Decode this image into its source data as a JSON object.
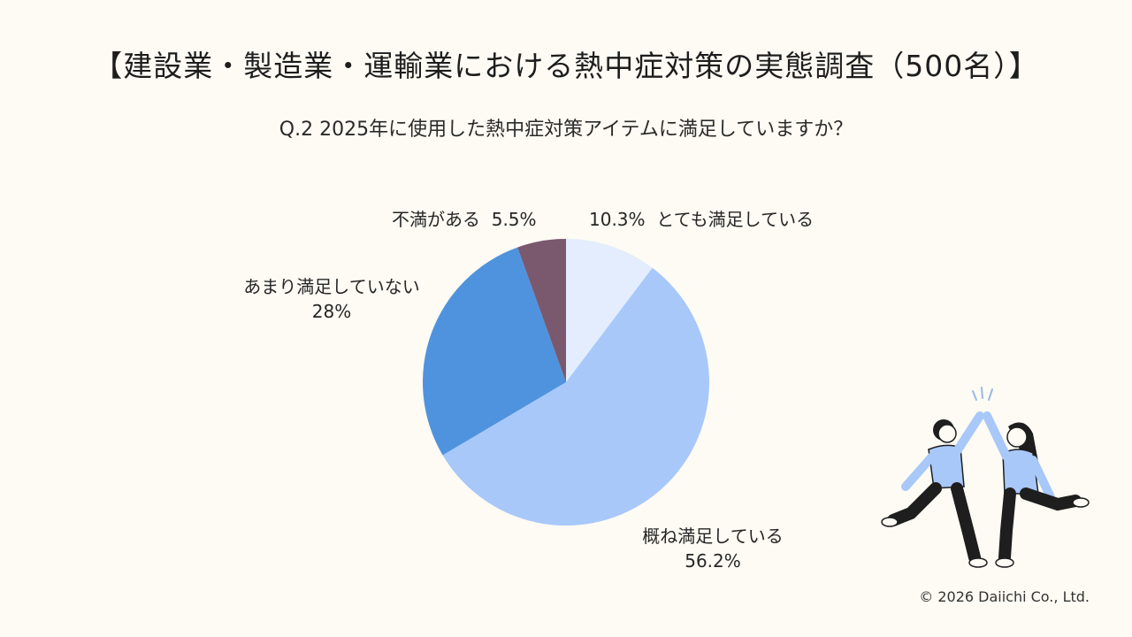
{
  "title": "【建設業・製造業・運輸業における熱中症対策の実態調査（500名）】",
  "subtitle": "Q.2 2025年に使用した熱中症対策アイテムに満足していますか？",
  "copyright": "© 2026 Daiichi Co., Ltd.",
  "chart_data": {
    "type": "pie",
    "slices": [
      {
        "label": "とても満足している",
        "value": 10.3,
        "value_label": "10.3%",
        "color": "#e3edfd"
      },
      {
        "label": "概ね満足している",
        "value": 56.2,
        "value_label": "56.2%",
        "color": "#a8c8fa"
      },
      {
        "label": "あまり満足していない",
        "value": 28,
        "value_label": "28%",
        "color": "#4f93de"
      },
      {
        "label": "不満がある",
        "value": 5.5,
        "value_label": "5.5%",
        "color": "#7a586e"
      }
    ]
  }
}
